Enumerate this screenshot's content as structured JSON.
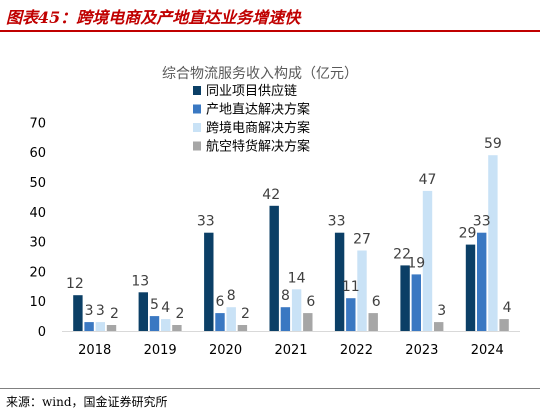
{
  "figure": {
    "title": "图表45：跨境电商及产地直达业务增速快",
    "source": "来源：wind，国金证券研究所"
  },
  "chart_data": {
    "type": "bar",
    "title": "综合物流服务收入构成（亿元）",
    "xlabel": "",
    "ylabel": "",
    "ylim": [
      0,
      70
    ],
    "yticks": [
      0,
      10,
      20,
      30,
      40,
      50,
      60,
      70
    ],
    "grid": false,
    "legend_position": "top",
    "categories": [
      "2018",
      "2019",
      "2020",
      "2021",
      "2022",
      "2023",
      "2024"
    ],
    "series": [
      {
        "name": "同业项目供应链",
        "color": "#0b3f66",
        "values": [
          12,
          13,
          33,
          42,
          33,
          22,
          29
        ]
      },
      {
        "name": "产地直达解决方案",
        "color": "#3a78c2",
        "values": [
          3,
          5,
          6,
          8,
          11,
          19,
          33
        ]
      },
      {
        "name": "跨境电商解决方案",
        "color": "#c9e2f6",
        "values": [
          3,
          4,
          8,
          14,
          27,
          47,
          59
        ]
      },
      {
        "name": "航空特货解决方案",
        "color": "#a6a6a6",
        "values": [
          2,
          2,
          2,
          6,
          6,
          3,
          4
        ]
      }
    ]
  }
}
